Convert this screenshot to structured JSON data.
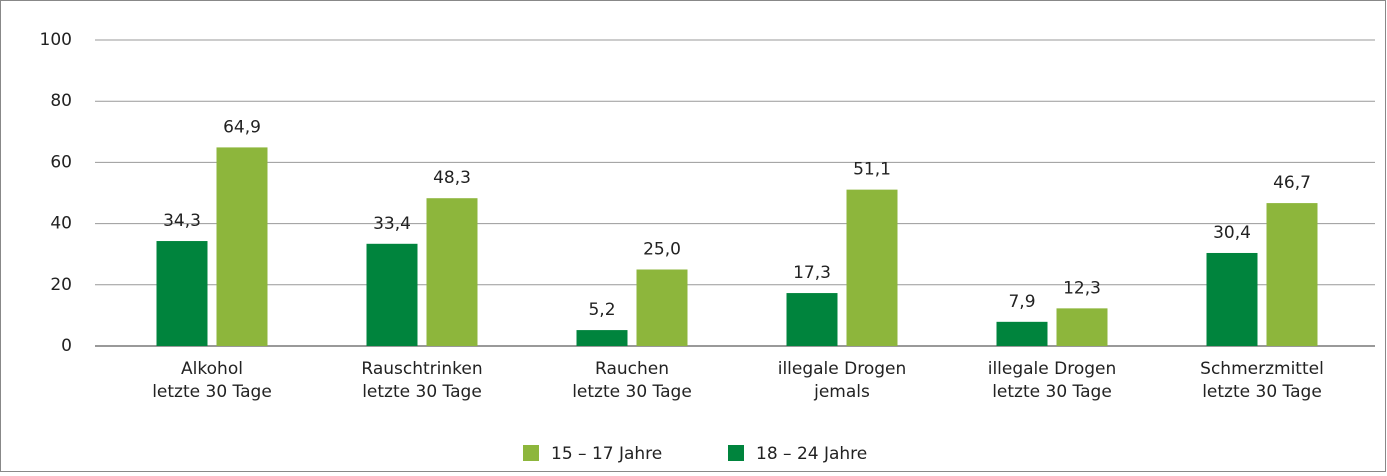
{
  "chart_data": {
    "type": "bar",
    "categories": [
      [
        "Alkohol",
        "letzte 30 Tage"
      ],
      [
        "Rauschtrinken",
        "letzte 30 Tage"
      ],
      [
        "Rauchen",
        "letzte 30 Tage"
      ],
      [
        "illegale Drogen",
        "jemals"
      ],
      [
        "illegale Drogen",
        "letzte 30 Tage"
      ],
      [
        "Schmerzmittel",
        "letzte 30 Tage"
      ]
    ],
    "series": [
      {
        "name": "18 – 24 Jahre",
        "color": "#00843d",
        "values": [
          34.3,
          33.4,
          5.2,
          17.3,
          7.9,
          30.4
        ],
        "value_labels": [
          "34,3",
          "33,4",
          "5,2",
          "17,3",
          "7,9",
          "30,4"
        ]
      },
      {
        "name": "15 – 17 Jahre",
        "color": "#8db63c",
        "values": [
          64.9,
          48.3,
          25.0,
          51.1,
          12.3,
          46.7
        ],
        "value_labels": [
          "64,9",
          "48,3",
          "25,0",
          "51,1",
          "12,3",
          "46,7"
        ]
      }
    ],
    "ylim": [
      0,
      100
    ],
    "yticks": [
      0,
      20,
      40,
      60,
      80,
      100
    ],
    "grid": true
  }
}
